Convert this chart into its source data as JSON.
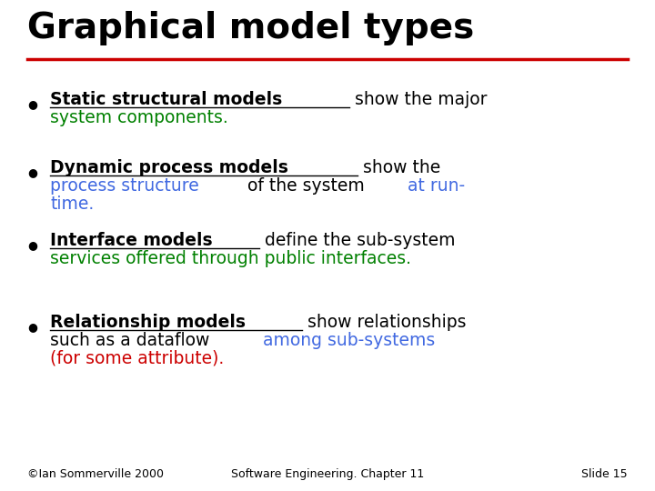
{
  "title": "Graphical model types",
  "title_color": "#000000",
  "title_fontsize": 28,
  "title_bold": true,
  "separator_color": "#cc0000",
  "background_color": "#ffffff",
  "bullet_color": "#000000",
  "bullet_points": [
    {
      "bold_text": "Static structural models",
      "black_text": " show the major",
      "continuation": [
        {
          "color": "#008000",
          "text": "system components."
        }
      ]
    },
    {
      "bold_text": "Dynamic process models",
      "black_text": " show the",
      "continuation": [
        {
          "color": "#4169e1",
          "text": "process structure"
        },
        {
          "color": "#000000",
          "text": " of the system "
        },
        {
          "color": "#4169e1",
          "text": "at run-"
        },
        {
          "color": "#4169e1",
          "text": "time."
        }
      ]
    },
    {
      "bold_text": "Interface models",
      "black_text": " define the sub-system",
      "continuation": [
        {
          "color": "#008000",
          "text": "services offered through public interfaces."
        }
      ]
    },
    {
      "bold_text": "Relationship models",
      "black_text": " show relationships",
      "continuation_line2": [
        {
          "color": "#000000",
          "text": "such as a dataflow "
        },
        {
          "color": "#4169e1",
          "text": "among sub-systems"
        }
      ],
      "continuation_line3": [
        {
          "color": "#cc0000",
          "text": "(for some attribute)."
        }
      ]
    }
  ],
  "footer_left": "©Ian Sommerville 2000",
  "footer_center": "Software Engineering. Chapter 11",
  "footer_right": "Slide 15",
  "footer_color": "#000000",
  "footer_fontsize": 9
}
